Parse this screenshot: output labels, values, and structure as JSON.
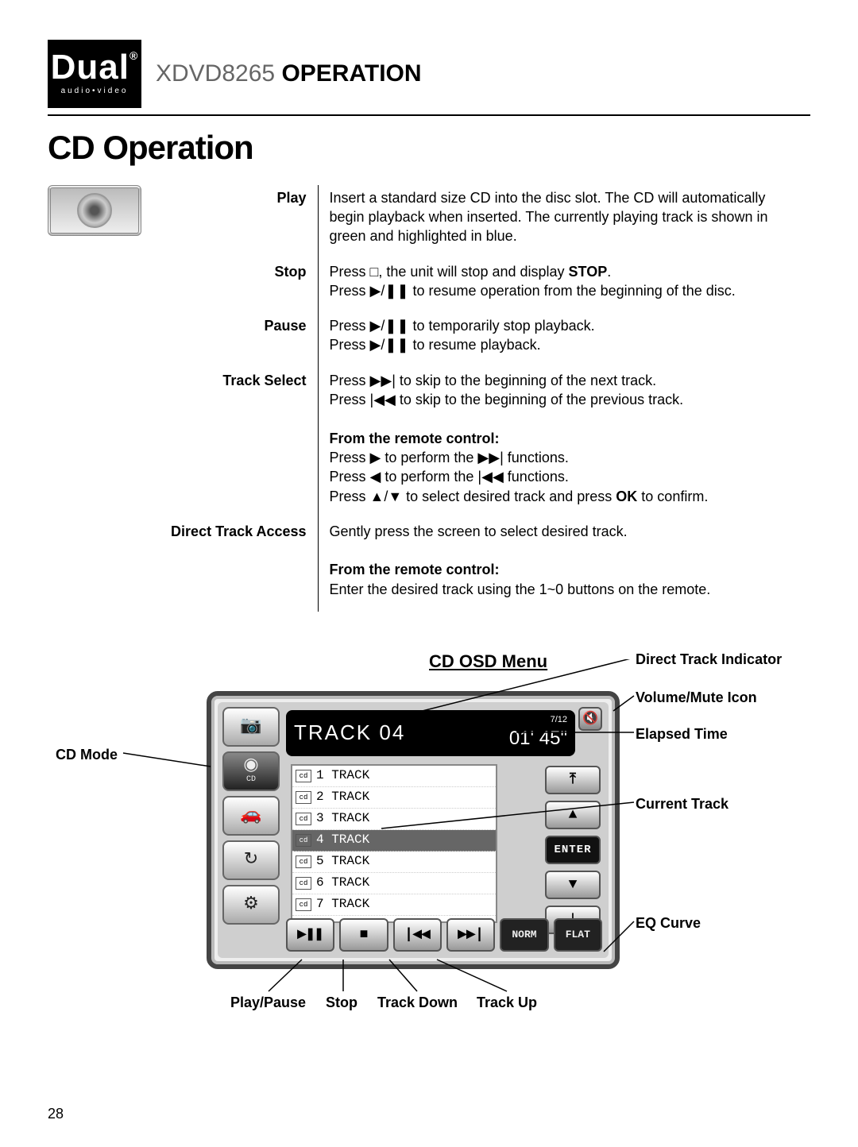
{
  "logo": {
    "brand": "Dual",
    "reg": "®",
    "sub": "audio•video"
  },
  "header": {
    "model": "XDVD8265",
    "word": "OPERATION"
  },
  "section_title": "CD Operation",
  "ops": [
    {
      "label": "Play",
      "html": "Insert a standard size CD into the disc slot. The CD will automatically begin playback when inserted. The currently playing track is shown in green and highlighted in blue."
    },
    {
      "label": "Stop",
      "html": "Press <span class='sym'>□</span>, the unit will stop and display <b>STOP</b>.<br>Press <span class='sym'>▶/❚❚</span> to resume operation from the beginning of the disc."
    },
    {
      "label": "Pause",
      "html": "Press <span class='sym'>▶/❚❚</span> to temporarily stop playback.<br>Press <span class='sym'>▶/❚❚</span> to resume playback."
    },
    {
      "label": "Track Select",
      "html": "Press <span class='sym'>▶▶|</span> to skip to the beginning of the next track.<br>Press <span class='sym'>|◀◀</span> to skip to the beginning of the previous track.<br><br><b>From the remote control:</b><br>Press <span class='sym'>▶</span> to perform the <span class='sym'>▶▶|</span> functions.<br>Press <span class='sym'>◀</span> to perform the <span class='sym'>|◀◀</span> functions.<br>Press <span class='sym'>▲/▼</span> to select desired track and press <b>OK</b> to confirm."
    },
    {
      "label": "Direct Track Access",
      "html": "Gently press the screen to select desired track.<br><br><b>From the remote control:</b><br>Enter the desired track using the 1~0 buttons on the remote."
    }
  ],
  "osd": {
    "title": "CD OSD Menu",
    "side_labels": [
      "📷",
      "CD",
      "🚗",
      "↻",
      "⚙"
    ],
    "track_label": "TRACK",
    "track_num": "04",
    "track_frac": "7/12",
    "elapsed": "01' 45\"",
    "tracks": [
      {
        "n": "1",
        "t": "TRACK"
      },
      {
        "n": "2",
        "t": "TRACK"
      },
      {
        "n": "3",
        "t": "TRACK"
      },
      {
        "n": "4",
        "t": "TRACK",
        "sel": true
      },
      {
        "n": "5",
        "t": "TRACK"
      },
      {
        "n": "6",
        "t": "TRACK"
      },
      {
        "n": "7",
        "t": "TRACK"
      }
    ],
    "rnav": [
      "⤒",
      "▲",
      "ENTER",
      "▼",
      "⤓"
    ],
    "bbar": [
      "▶❚❚",
      "■",
      "|◀◀",
      "▶▶|",
      "NORM",
      "FLAT"
    ],
    "callouts": {
      "cd_mode": "CD Mode",
      "dti": "Direct Track Indicator",
      "vol": "Volume/Mute Icon",
      "elapsed": "Elapsed Time",
      "current": "Current Track",
      "eq": "EQ Curve",
      "playpause": "Play/Pause",
      "stop": "Stop",
      "tdown": "Track Down",
      "tup": "Track Up"
    }
  },
  "page": "28"
}
